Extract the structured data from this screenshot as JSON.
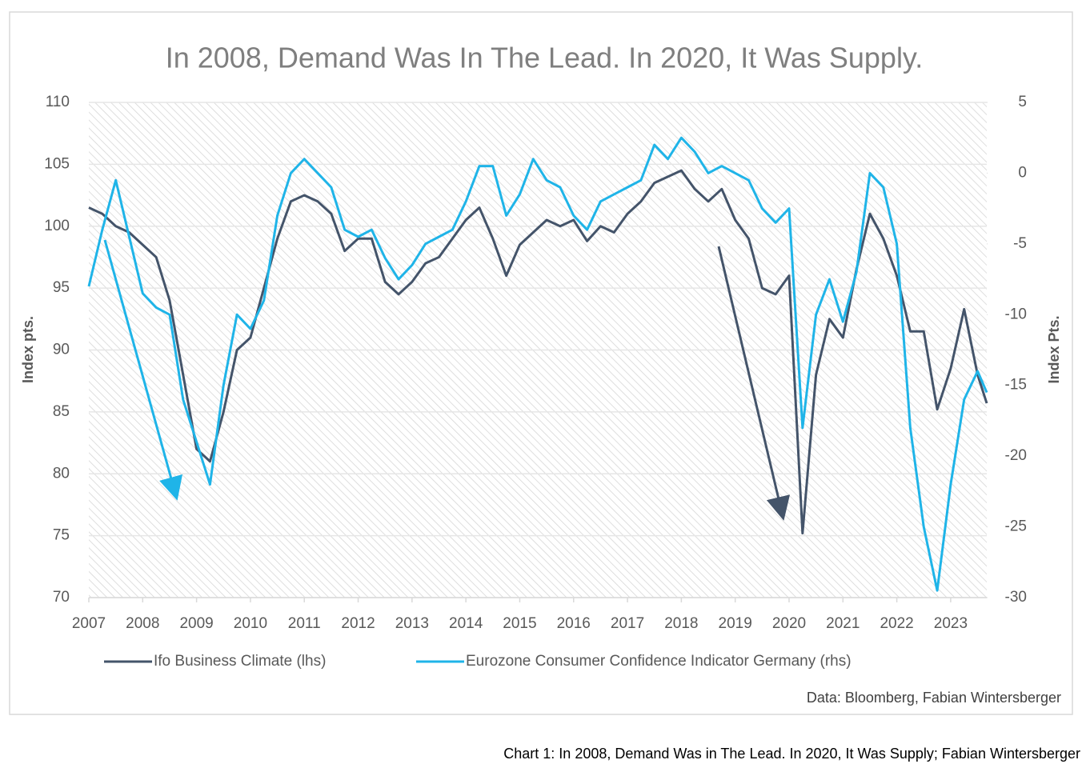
{
  "chart_data": {
    "type": "line",
    "title": "In 2008, Demand Was In The Lead. In 2020, It Was Supply.",
    "y_label": "Index pts.",
    "y2_label": "Index Pts.",
    "source": "Data: Bloomberg, Fabian Wintersberger",
    "caption": "Chart 1: In 2008, Demand Was in The Lead. In 2020, It Was Supply; Fabian Wintersberger",
    "xlim": [
      2007,
      2023.67
    ],
    "xticks": [
      2007,
      2008,
      2009,
      2010,
      2011,
      2012,
      2013,
      2014,
      2015,
      2016,
      2017,
      2018,
      2019,
      2020,
      2021,
      2022,
      2023
    ],
    "ylim": [
      70,
      110
    ],
    "yticks": [
      70,
      75,
      80,
      85,
      90,
      95,
      100,
      105,
      110
    ],
    "y2lim": [
      -30,
      5
    ],
    "y2ticks": [
      -30,
      -25,
      -20,
      -15,
      -10,
      -5,
      0,
      5
    ],
    "grid": true,
    "x": [
      2007,
      2007.25,
      2007.5,
      2007.75,
      2008,
      2008.25,
      2008.5,
      2008.75,
      2009,
      2009.25,
      2009.5,
      2009.75,
      2010,
      2010.25,
      2010.5,
      2010.75,
      2011,
      2011.25,
      2011.5,
      2011.75,
      2012,
      2012.25,
      2012.5,
      2012.75,
      2013,
      2013.25,
      2013.5,
      2013.75,
      2014,
      2014.25,
      2014.5,
      2014.75,
      2015,
      2015.25,
      2015.5,
      2015.75,
      2016,
      2016.25,
      2016.5,
      2016.75,
      2017,
      2017.25,
      2017.5,
      2017.75,
      2018,
      2018.25,
      2018.5,
      2018.75,
      2019,
      2019.25,
      2019.5,
      2019.75,
      2020,
      2020.25,
      2020.5,
      2020.75,
      2021,
      2021.25,
      2021.5,
      2021.75,
      2022,
      2022.25,
      2022.5,
      2022.75,
      2023,
      2023.25,
      2023.5,
      2023.67
    ],
    "series": [
      {
        "name": "Ifo Business Climate (lhs)",
        "color": "#44546a",
        "values": [
          101.5,
          101,
          100,
          99.5,
          98.5,
          97.5,
          94,
          88,
          82,
          81,
          85,
          90,
          91,
          95,
          99,
          102,
          102.5,
          102,
          101,
          98,
          99,
          99,
          95.5,
          94.5,
          95.5,
          97,
          97.5,
          99,
          100.5,
          101.5,
          99,
          96,
          98.5,
          99.5,
          100.5,
          100,
          100.5,
          98.8,
          100,
          99.5,
          101,
          102,
          103.5,
          104,
          104.5,
          103,
          102,
          103,
          100.5,
          99,
          95,
          94.5,
          96,
          75.2,
          88,
          92.5,
          91,
          96.5,
          101,
          99,
          96,
          91.5,
          91.5,
          85.2,
          88.5,
          93.3,
          88,
          85.7
        ]
      },
      {
        "name": "Eurozone Consumer Confidence Indicator Germany (rhs)",
        "color": "#1fb4e8",
        "axis": "y2",
        "values": [
          -8,
          -4,
          -0.5,
          -4.5,
          -8.5,
          -9.5,
          -10,
          -16,
          -19,
          -22,
          -15,
          -10,
          -11,
          -9,
          -3,
          0,
          1,
          0,
          -1,
          -4,
          -4.5,
          -4,
          -6,
          -7.5,
          -6.5,
          -5,
          -4.5,
          -4,
          -2,
          0.5,
          0.5,
          -3,
          -1.5,
          1,
          -0.5,
          -1,
          -3,
          -4,
          -2,
          -1.5,
          -1,
          -0.5,
          2,
          1,
          2.5,
          1.5,
          0,
          0.5,
          0,
          -0.5,
          -2.5,
          -3.5,
          -2.5,
          -18,
          -10,
          -7.5,
          -10.5,
          -7,
          0,
          -1,
          -5,
          -18,
          -25,
          -29.5,
          -22,
          -16,
          -14,
          -15.5
        ]
      }
    ]
  }
}
